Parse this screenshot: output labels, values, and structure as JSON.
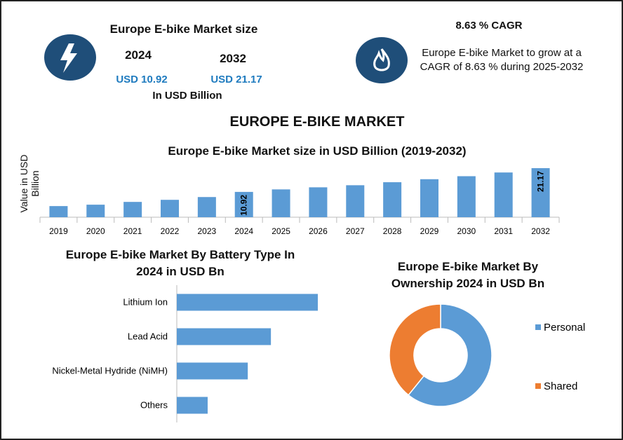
{
  "header": {
    "size_title": "Europe E-bike Market size",
    "year_start": "2024",
    "year_end": "2032",
    "value_start": "USD 10.92",
    "value_end": "USD 21.17",
    "unit": "In USD Billion",
    "cagr_title": "8.63 % CAGR",
    "cagr_text": "Europe E-bike Market to grow at a CAGR of 8.63 % during 2025-2032",
    "main_title": "EUROPE E-BIKE MARKET"
  },
  "chart_data": [
    {
      "type": "bar",
      "title": "Europe E-bike Market size in USD Billion (2019-2032)",
      "ylabel": "Value in USD Billion",
      "categories": [
        "2019",
        "2020",
        "2021",
        "2022",
        "2023",
        "2024",
        "2025",
        "2026",
        "2027",
        "2028",
        "2029",
        "2030",
        "2031",
        "2032"
      ],
      "values": [
        4.8,
        5.4,
        6.6,
        7.5,
        8.7,
        10.92,
        12.0,
        12.9,
        13.8,
        15.1,
        16.4,
        17.7,
        19.3,
        21.17
      ],
      "value_labels": [
        null,
        null,
        null,
        null,
        null,
        "10.92",
        null,
        null,
        null,
        null,
        null,
        null,
        null,
        "21.17"
      ],
      "color": "#5b9bd5"
    },
    {
      "type": "hbar",
      "title": "Europe E-bike Market By  Battery Type In 2024 in USD Bn",
      "categories": [
        "Lithium Ion",
        "Lead Acid",
        "Nickel-Metal Hydride (NiMH)",
        "Others"
      ],
      "values": [
        4.57,
        3.05,
        2.3,
        1.0
      ],
      "color": "#5b9bd5"
    },
    {
      "type": "donut",
      "title": "Europe E-bike Market By Ownership 2024 in USD Bn",
      "categories": [
        "Personal",
        "Shared"
      ],
      "values": [
        6.64,
        4.28
      ],
      "colors": [
        "#5b9bd5",
        "#ed7d31"
      ]
    }
  ]
}
